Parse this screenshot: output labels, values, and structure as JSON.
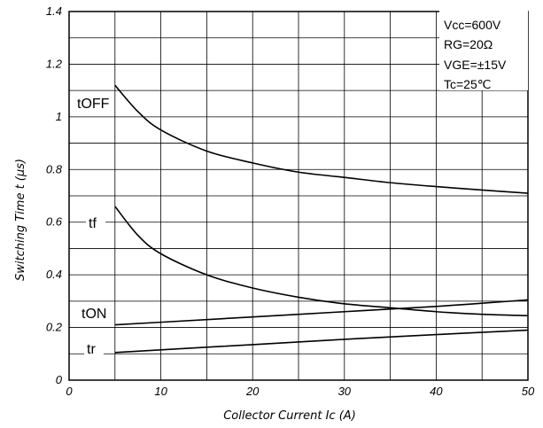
{
  "chart_data": {
    "type": "line",
    "xlabel": "Collector Current Ic (A)",
    "ylabel": "Switching Time t (μs)",
    "xlim": [
      0,
      50
    ],
    "ylim": [
      0,
      1.4
    ],
    "x_ticks": [
      "0",
      "10",
      "20",
      "30",
      "40",
      "50"
    ],
    "y_ticks": [
      "0",
      "0.2",
      "0.4",
      "0.6",
      "0.8",
      "1",
      "1.2",
      "1.4"
    ],
    "grid": true,
    "conditions": [
      "Vcc=600V",
      "RG=20Ω",
      "VGE=±15V",
      "Tc=25℃"
    ],
    "series": [
      {
        "name": "tOFF",
        "x": [
          5,
          7.5,
          10,
          15,
          20,
          25,
          30,
          35,
          40,
          45,
          50
        ],
        "values": [
          1.12,
          1.02,
          0.95,
          0.87,
          0.825,
          0.79,
          0.77,
          0.75,
          0.735,
          0.722,
          0.71
        ]
      },
      {
        "name": "tf",
        "x": [
          5,
          7.5,
          10,
          15,
          20,
          25,
          30,
          35,
          40,
          45,
          50
        ],
        "values": [
          0.66,
          0.55,
          0.48,
          0.4,
          0.35,
          0.315,
          0.29,
          0.275,
          0.26,
          0.25,
          0.245
        ]
      },
      {
        "name": "tON",
        "x": [
          5,
          10,
          20,
          30,
          40,
          50
        ],
        "values": [
          0.21,
          0.22,
          0.24,
          0.26,
          0.28,
          0.305
        ]
      },
      {
        "name": "tr",
        "x": [
          5,
          10,
          20,
          30,
          40,
          50
        ],
        "values": [
          0.105,
          0.115,
          0.135,
          0.155,
          0.173,
          0.19
        ]
      }
    ]
  }
}
